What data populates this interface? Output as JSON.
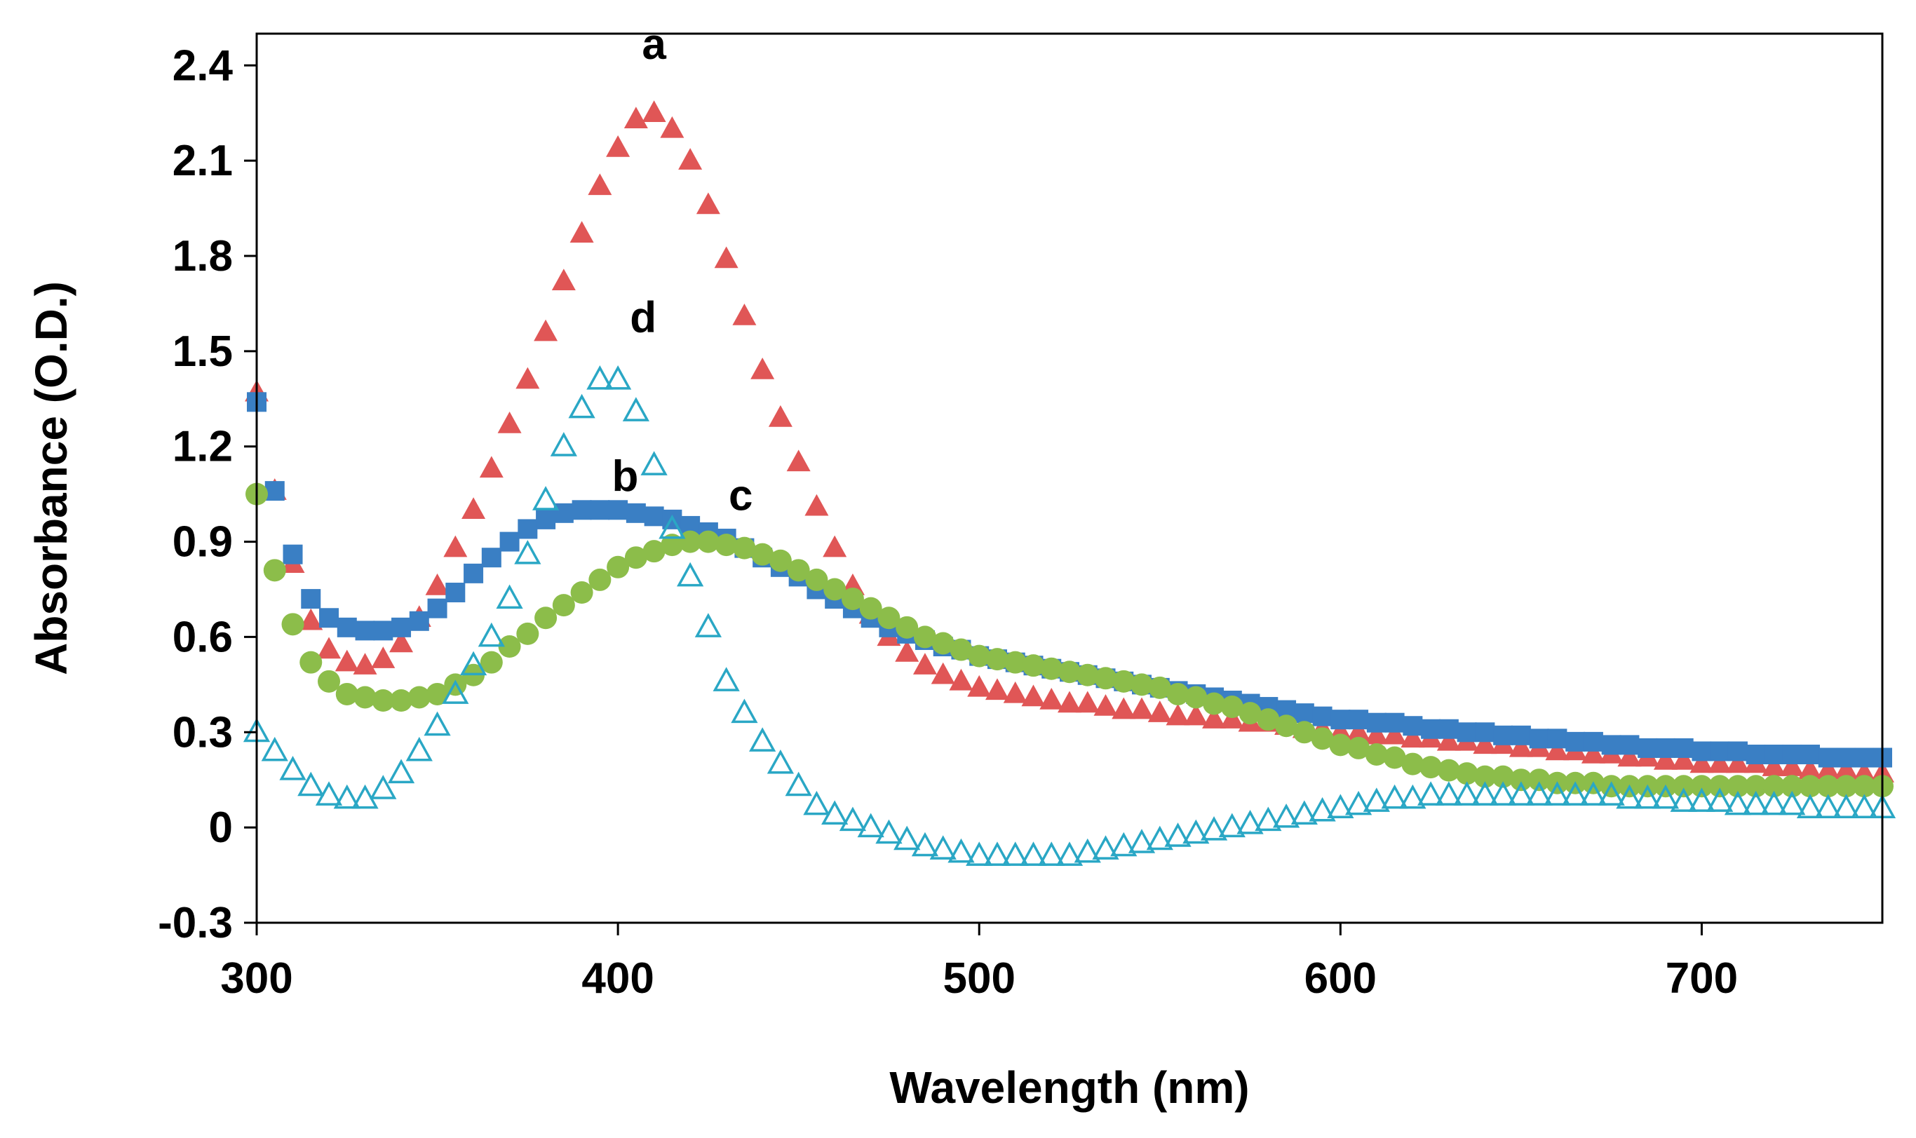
{
  "chart_data": {
    "type": "scatter",
    "title": "",
    "xlabel": "Wavelength (nm)",
    "ylabel": "Absorbance (O.D.)",
    "xlim": [
      300,
      750
    ],
    "ylim": [
      -0.3,
      2.5
    ],
    "xticks": [
      300,
      400,
      500,
      600,
      700
    ],
    "yticks": [
      -0.3,
      0,
      0.3,
      0.6,
      0.9,
      1.2,
      1.5,
      1.8,
      2.1,
      2.4
    ],
    "ytick_labels": [
      "-0.3",
      "0",
      "0.3",
      "0.6",
      "0.9",
      "1.2",
      "1.5",
      "1.8",
      "2.1",
      "2.4"
    ],
    "grid": false,
    "series": [
      {
        "name": "a",
        "label": "a",
        "marker": "triangle-filled",
        "color": "#e05656",
        "x_start": 300,
        "x_step": 5,
        "values": [
          1.37,
          1.06,
          0.83,
          0.65,
          0.56,
          0.52,
          0.51,
          0.53,
          0.58,
          0.66,
          0.76,
          0.88,
          1.0,
          1.13,
          1.27,
          1.41,
          1.56,
          1.72,
          1.87,
          2.02,
          2.14,
          2.23,
          2.25,
          2.2,
          2.1,
          1.96,
          1.79,
          1.61,
          1.44,
          1.29,
          1.15,
          1.01,
          0.88,
          0.76,
          0.67,
          0.6,
          0.55,
          0.51,
          0.48,
          0.46,
          0.44,
          0.43,
          0.42,
          0.41,
          0.4,
          0.39,
          0.39,
          0.38,
          0.37,
          0.37,
          0.36,
          0.35,
          0.35,
          0.34,
          0.34,
          0.33,
          0.33,
          0.32,
          0.31,
          0.31,
          0.3,
          0.3,
          0.29,
          0.29,
          0.28,
          0.28,
          0.27,
          0.27,
          0.26,
          0.26,
          0.25,
          0.25,
          0.24,
          0.24,
          0.23,
          0.23,
          0.22,
          0.22,
          0.21,
          0.21,
          0.2,
          0.2,
          0.2,
          0.2,
          0.19,
          0.19,
          0.18,
          0.18,
          0.18,
          0.17,
          0.17
        ]
      },
      {
        "name": "b",
        "label": "b",
        "marker": "square-filled",
        "color": "#3a7fc4",
        "x_start": 300,
        "x_step": 5,
        "values": [
          1.34,
          1.06,
          0.86,
          0.72,
          0.66,
          0.63,
          0.62,
          0.62,
          0.63,
          0.65,
          0.69,
          0.74,
          0.8,
          0.85,
          0.9,
          0.94,
          0.97,
          0.99,
          1.0,
          1.0,
          1.0,
          0.99,
          0.98,
          0.97,
          0.95,
          0.93,
          0.91,
          0.88,
          0.85,
          0.82,
          0.79,
          0.75,
          0.72,
          0.69,
          0.66,
          0.63,
          0.61,
          0.59,
          0.57,
          0.56,
          0.54,
          0.53,
          0.52,
          0.51,
          0.5,
          0.49,
          0.48,
          0.47,
          0.46,
          0.45,
          0.44,
          0.43,
          0.42,
          0.41,
          0.4,
          0.39,
          0.38,
          0.37,
          0.36,
          0.35,
          0.34,
          0.34,
          0.33,
          0.33,
          0.32,
          0.31,
          0.31,
          0.3,
          0.3,
          0.29,
          0.29,
          0.28,
          0.28,
          0.27,
          0.27,
          0.26,
          0.26,
          0.25,
          0.25,
          0.25,
          0.24,
          0.24,
          0.24,
          0.23,
          0.23,
          0.23,
          0.23,
          0.22,
          0.22,
          0.22,
          0.22
        ]
      },
      {
        "name": "c",
        "label": "c",
        "marker": "circle-filled",
        "color": "#8cbd4a",
        "x_start": 300,
        "x_step": 5,
        "values": [
          1.05,
          0.81,
          0.64,
          0.52,
          0.46,
          0.42,
          0.41,
          0.4,
          0.4,
          0.41,
          0.42,
          0.45,
          0.48,
          0.52,
          0.57,
          0.61,
          0.66,
          0.7,
          0.74,
          0.78,
          0.82,
          0.85,
          0.87,
          0.89,
          0.9,
          0.9,
          0.89,
          0.88,
          0.86,
          0.84,
          0.81,
          0.78,
          0.75,
          0.72,
          0.69,
          0.66,
          0.63,
          0.6,
          0.58,
          0.56,
          0.54,
          0.53,
          0.52,
          0.51,
          0.5,
          0.49,
          0.48,
          0.47,
          0.46,
          0.45,
          0.44,
          0.42,
          0.41,
          0.39,
          0.38,
          0.36,
          0.34,
          0.32,
          0.3,
          0.28,
          0.26,
          0.25,
          0.23,
          0.22,
          0.2,
          0.19,
          0.18,
          0.17,
          0.16,
          0.16,
          0.15,
          0.15,
          0.14,
          0.14,
          0.14,
          0.13,
          0.13,
          0.13,
          0.13,
          0.13,
          0.13,
          0.13,
          0.13,
          0.13,
          0.13,
          0.13,
          0.13,
          0.13,
          0.13,
          0.13,
          0.13
        ]
      },
      {
        "name": "d",
        "label": "d",
        "marker": "triangle-open",
        "color": "#2aa7c5",
        "x_start": 300,
        "x_step": 5,
        "values": [
          0.3,
          0.24,
          0.18,
          0.13,
          0.1,
          0.09,
          0.09,
          0.12,
          0.17,
          0.24,
          0.32,
          0.42,
          0.51,
          0.6,
          0.72,
          0.86,
          1.03,
          1.2,
          1.32,
          1.41,
          1.41,
          1.31,
          1.14,
          0.94,
          0.79,
          0.63,
          0.46,
          0.36,
          0.27,
          0.2,
          0.13,
          0.07,
          0.04,
          0.02,
          0.0,
          -0.02,
          -0.04,
          -0.06,
          -0.07,
          -0.08,
          -0.09,
          -0.09,
          -0.09,
          -0.09,
          -0.09,
          -0.09,
          -0.08,
          -0.07,
          -0.06,
          -0.05,
          -0.04,
          -0.03,
          -0.02,
          -0.01,
          0.0,
          0.01,
          0.02,
          0.03,
          0.04,
          0.05,
          0.06,
          0.07,
          0.08,
          0.09,
          0.09,
          0.1,
          0.1,
          0.1,
          0.1,
          0.1,
          0.1,
          0.1,
          0.1,
          0.1,
          0.1,
          0.1,
          0.09,
          0.09,
          0.09,
          0.08,
          0.08,
          0.08,
          0.07,
          0.07,
          0.07,
          0.07,
          0.06,
          0.06,
          0.06,
          0.06,
          0.06
        ]
      }
    ],
    "annotations": [
      {
        "text": "a",
        "x": 410,
        "y": 2.42
      },
      {
        "text": "d",
        "x": 407,
        "y": 1.56
      },
      {
        "text": "b",
        "x": 402,
        "y": 1.06
      },
      {
        "text": "c",
        "x": 434,
        "y": 1.0
      }
    ]
  }
}
